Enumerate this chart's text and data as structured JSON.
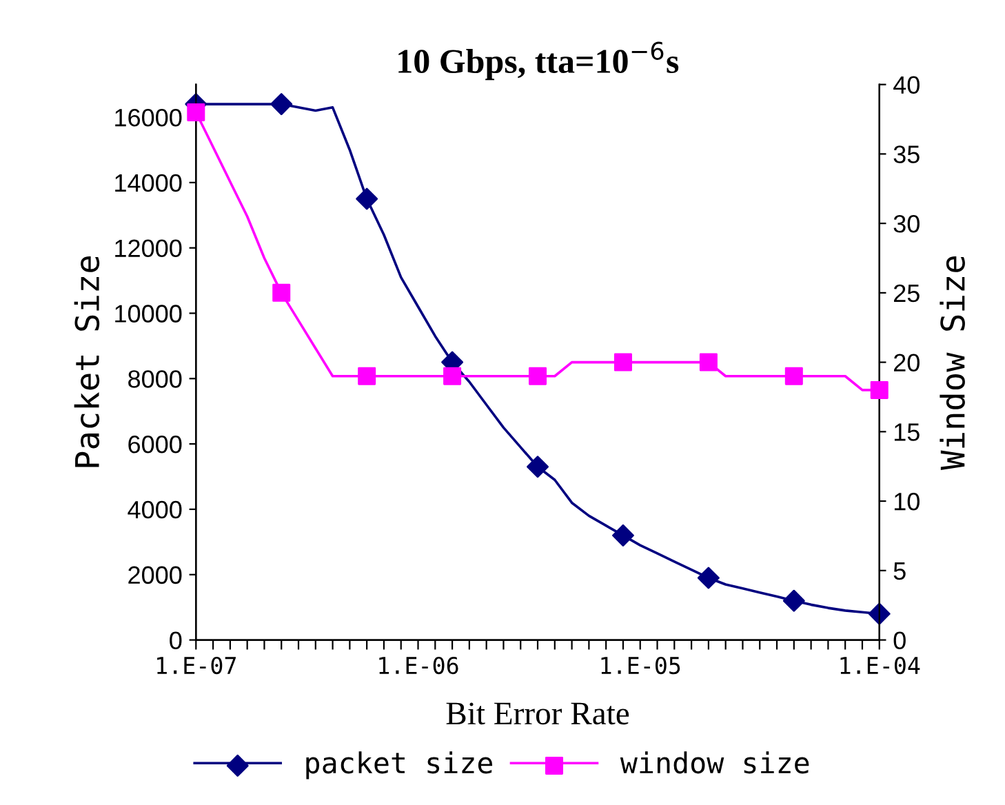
{
  "chart_data": {
    "type": "line",
    "title": "10 Gbps, tta=10$^{−6}$s",
    "xlabel": "Bit Error Rate",
    "ylabel": "Packet Size",
    "y2label": "Window Size",
    "categories": [
      "1.E-07",
      null,
      null,
      null,
      null,
      null,
      null,
      null,
      null,
      null,
      null,
      null,
      null,
      "1.E-06",
      null,
      null,
      null,
      null,
      null,
      null,
      null,
      null,
      null,
      null,
      null,
      null,
      "1.E-05",
      null,
      null,
      null,
      null,
      null,
      null,
      null,
      null,
      null,
      null,
      null,
      null,
      null,
      "1.E-04"
    ],
    "series": [
      {
        "color": "#000080",
        "marker": "none",
        "values": [
          16400,
          16400,
          16400,
          16400,
          16400,
          16400,
          16300,
          16200,
          16300,
          15000,
          13500,
          12400,
          11100,
          10200,
          9300,
          8500,
          7900,
          7200,
          6500,
          5900,
          5300,
          4900,
          4200,
          3800,
          3500,
          3200,
          2900,
          2650,
          2400,
          2150,
          1900,
          1700,
          1580,
          1450,
          1330,
          1200,
          1080,
          980,
          900,
          850,
          800
        ]
      },
      {
        "name": "packet size",
        "type": "scatter",
        "color": "#000080",
        "marker": "diamond",
        "values": [
          16400,
          null,
          null,
          null,
          null,
          16400,
          null,
          null,
          null,
          null,
          13500,
          null,
          null,
          null,
          null,
          8500,
          null,
          null,
          null,
          null,
          5300,
          null,
          null,
          null,
          null,
          3200,
          null,
          null,
          null,
          null,
          1900,
          null,
          null,
          null,
          null,
          1200,
          null,
          null,
          null,
          null,
          800
        ]
      },
      {
        "name": "window size",
        "type": "scatter",
        "color": "#ff00ff",
        "marker": "square",
        "axis": "y2",
        "values": [
          38,
          null,
          null,
          null,
          null,
          25,
          null,
          null,
          null,
          null,
          19,
          null,
          null,
          null,
          null,
          19,
          null,
          null,
          null,
          null,
          19,
          null,
          null,
          null,
          null,
          20,
          null,
          null,
          null,
          null,
          20,
          null,
          null,
          null,
          null,
          19,
          null,
          null,
          null,
          null,
          18
        ]
      },
      {
        "color": "#ff00ff",
        "marker": "none",
        "axis": "y2",
        "values": [
          38,
          35.5,
          33,
          30.5,
          27.5,
          25,
          23,
          21,
          19,
          19,
          19,
          19,
          19,
          19,
          19,
          19,
          19,
          19,
          19,
          19,
          19,
          19,
          20,
          20,
          20,
          20,
          20,
          20,
          20,
          20,
          20,
          19,
          19,
          19,
          19,
          19,
          19,
          19,
          19,
          18,
          18
        ]
      }
    ],
    "ylim": [
      0,
      17000
    ],
    "yticks": [
      0,
      2000,
      4000,
      6000,
      8000,
      10000,
      12000,
      14000,
      16000
    ],
    "y2lim": [
      0,
      40
    ],
    "y2ticks": [
      0,
      5,
      10,
      15,
      20,
      25,
      30,
      35,
      40
    ],
    "grid": false,
    "legend": "bottom",
    "line_style": "solid"
  }
}
